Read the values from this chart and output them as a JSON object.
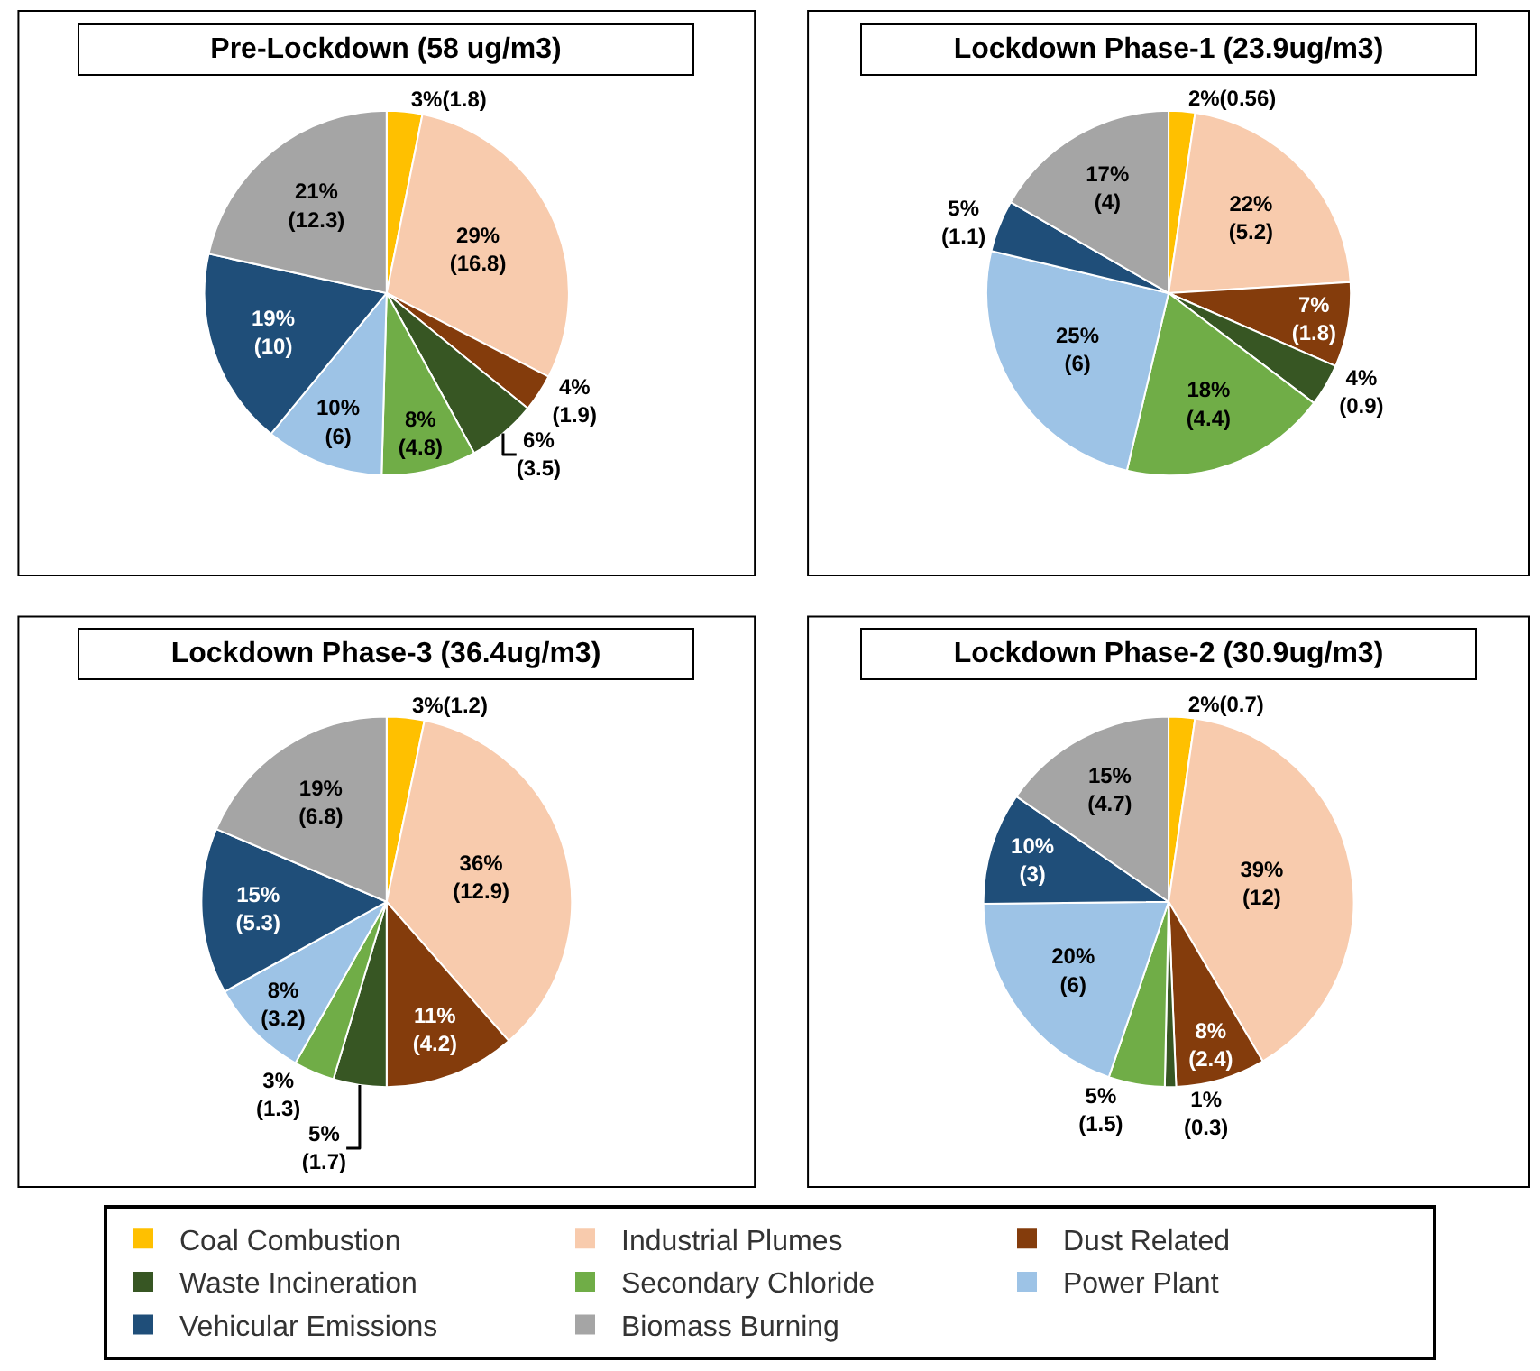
{
  "chart_data": [
    {
      "type": "pie",
      "title": "Pre-Lockdown (58 ug/m3)",
      "categories": [
        "Coal Combustion",
        "Industrial Plumes",
        "Dust Related",
        "Waste Incineration",
        "Secondary Chloride",
        "Power Plant",
        "Vehicular Emissions",
        "Biomass Burning"
      ],
      "values": [
        1.8,
        16.8,
        1.9,
        3.5,
        4.8,
        6,
        10,
        12.3
      ],
      "colors": [
        "#ffc000",
        "#f8cbad",
        "#843c0c",
        "#375623",
        "#70ad47",
        "#9dc3e6",
        "#1f4e79",
        "#a5a5a5"
      ],
      "value_labels": [
        "3%(1.8)",
        "29%\n(16.8)",
        "4%\n(1.9)",
        "6%\n(3.5)",
        "8%\n(4.8)",
        "10%\n(6)",
        "19%\n(10)",
        "21%\n(12.3)"
      ],
      "legend": "bottom"
    },
    {
      "type": "pie",
      "title": "Lockdown Phase-1 (23.9ug/m3)",
      "categories": [
        null,
        null,
        null,
        null,
        null,
        null,
        null,
        null
      ],
      "values": [
        0.56,
        5.2,
        1.8,
        0.9,
        4.4,
        6,
        1.1,
        4
      ],
      "colors": [
        "#ffc000",
        "#f8cbad",
        "#843c0c",
        "#375623",
        "#70ad47",
        "#9dc3e6",
        "#1f4e79",
        "#a5a5a5"
      ],
      "value_labels": [
        "2%(0.56)",
        "22%\n(5.2)",
        "7%\n(1.8)",
        "4%\n(0.9)",
        "18%\n(4.4)",
        "25%\n(6)",
        "5%\n(1.1)",
        "17%\n(4)"
      ]
    },
    {
      "type": "pie",
      "title": "Lockdown Phase-3 (36.4ug/m3)",
      "categories": [
        null,
        null,
        null,
        null,
        null,
        null,
        null,
        null
      ],
      "values": [
        1.2,
        12.9,
        4.2,
        1.7,
        1.3,
        3.2,
        5.3,
        6.8
      ],
      "colors": [
        "#ffc000",
        "#f8cbad",
        "#843c0c",
        "#375623",
        "#70ad47",
        "#9dc3e6",
        "#1f4e79",
        "#a5a5a5"
      ],
      "value_labels": [
        "3%(1.2)",
        "36%\n(12.9)",
        "11%\n(4.2)",
        "5%\n(1.7)",
        "3%\n(1.3)",
        "8%\n(3.2)",
        "15%\n(5.3)",
        "19%\n(6.8)"
      ]
    },
    {
      "type": "pie",
      "title": "Lockdown Phase-2 (30.9ug/m3)",
      "categories": [
        null,
        null,
        null,
        null,
        null,
        null,
        null,
        null
      ],
      "values": [
        0.7,
        12,
        2.4,
        0.3,
        1.5,
        6,
        3,
        4.7
      ],
      "colors": [
        "#ffc000",
        "#f8cbad",
        "#843c0c",
        "#375623",
        "#70ad47",
        "#9dc3e6",
        "#1f4e79",
        "#a5a5a5"
      ],
      "value_labels": [
        "2%(0.7)",
        "39%\n(12)",
        "8%\n(2.4)",
        "1%\n(0.3)",
        "5%\n(1.5)",
        "20%\n(6)",
        "10%\n(3)",
        "15%\n(4.7)"
      ]
    }
  ]
}
